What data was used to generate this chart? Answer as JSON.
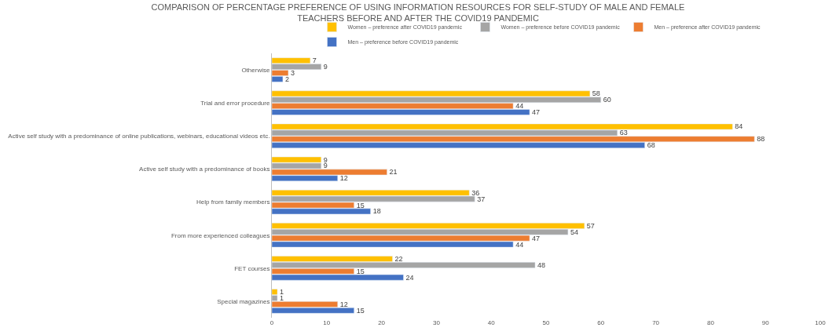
{
  "chart_data": {
    "type": "bar",
    "orientation": "horizontal",
    "title": "COMPARISON OF PERCENTAGE PREFERENCE OF USING INFORMATION RESOURCES FOR SELF-STUDY OF MALE AND FEMALE\nTEACHERS BEFORE AND AFTER THE COVID19 PANDEMIC",
    "categories": [
      "Otherwise",
      "Trial and error procedure",
      "Active self study with a predominance of online publications, webinars, educational videos etc.",
      "Active self study with a predominance of books",
      "Help from family members",
      "From more experienced colleagues",
      "FET courses",
      "Special magazines"
    ],
    "series": [
      {
        "name": "Women – preference after COVID19 pandemic",
        "color": "#ffc000",
        "values": [
          7,
          58,
          84,
          9,
          36,
          57,
          22,
          1
        ]
      },
      {
        "name": "Women – preference before COVID19 pandemic",
        "color": "#a5a5a5",
        "values": [
          9,
          60,
          63,
          9,
          37,
          54,
          48,
          1
        ]
      },
      {
        "name": "Men – preference after COVID19 pandemic",
        "color": "#ed7d31",
        "values": [
          3,
          44,
          88,
          21,
          15,
          47,
          15,
          12
        ]
      },
      {
        "name": "Men – preference before COVID19 pandemic",
        "color": "#4472c4",
        "values": [
          2,
          47,
          68,
          12,
          18,
          44,
          24,
          15
        ]
      }
    ],
    "xlim": [
      0,
      100
    ],
    "xticks": [
      0,
      10,
      20,
      30,
      40,
      50,
      60,
      70,
      80,
      90,
      100
    ],
    "data_labels": true,
    "legend": "top"
  }
}
